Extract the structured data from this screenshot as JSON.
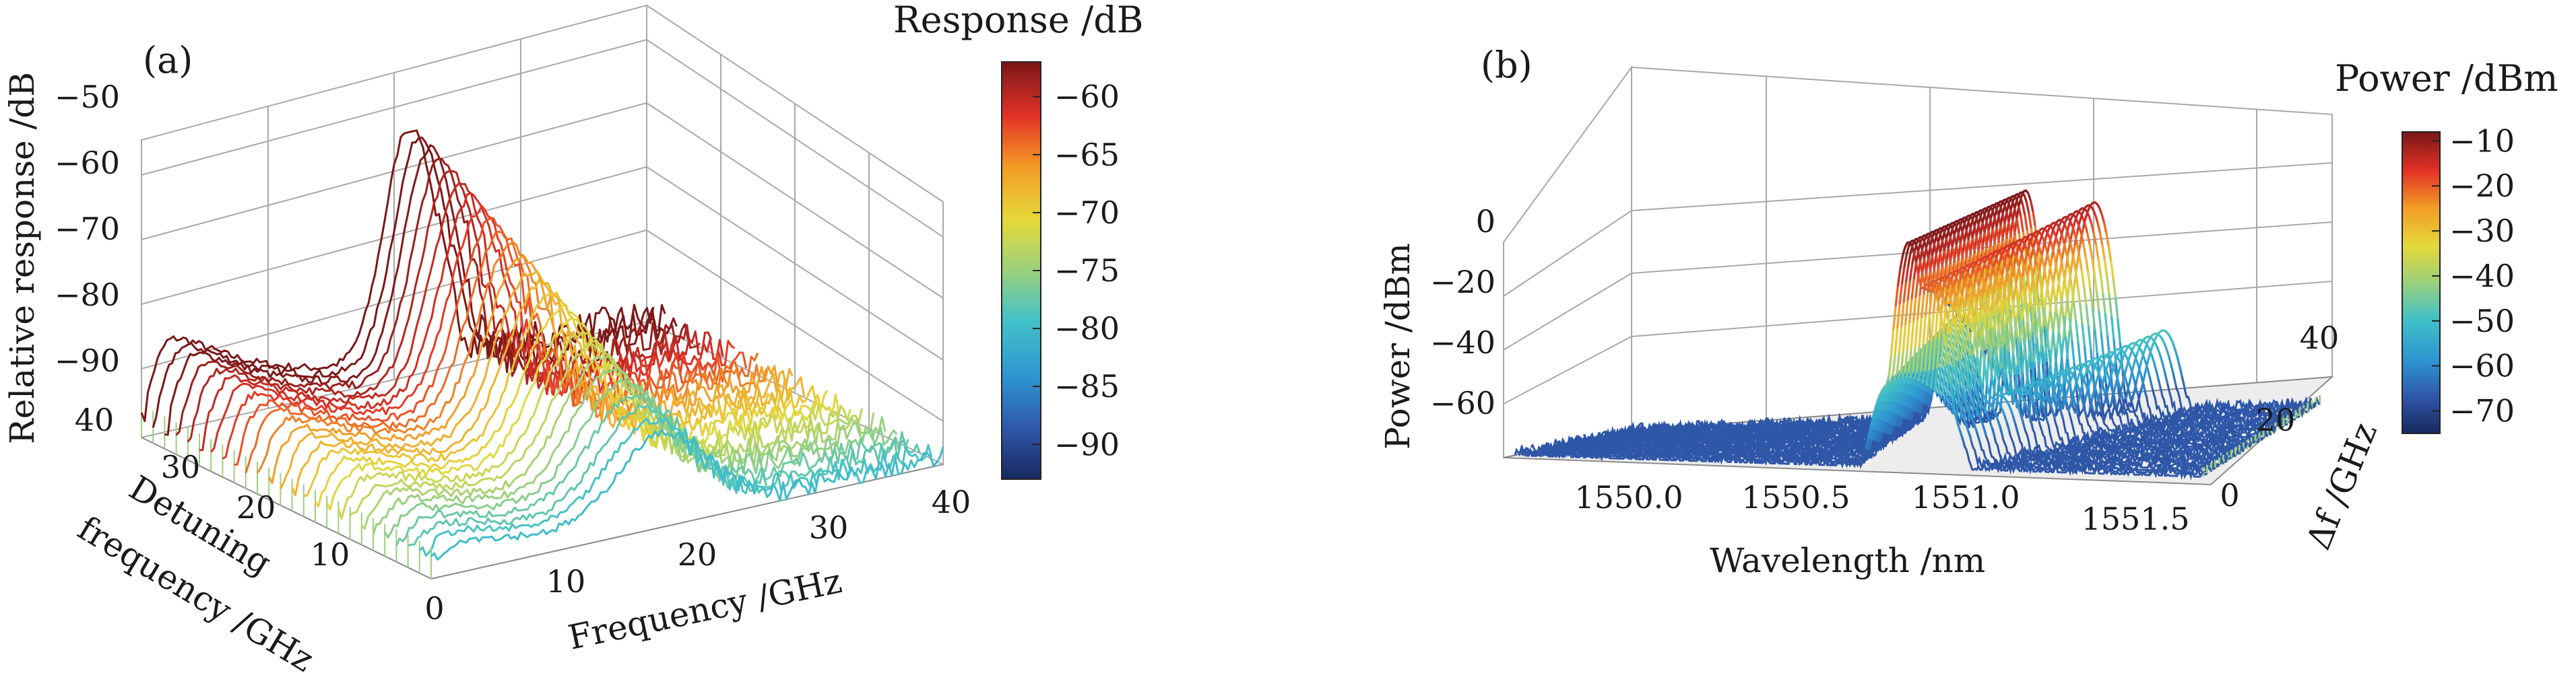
{
  "chart_data": [
    {
      "panel_label": "(a)",
      "type": "waterfall-3d-line",
      "x_label": "Frequency /GHz",
      "y_label_lines": [
        "Detuning",
        "frequency /GHz"
      ],
      "z_label": "Relative response /dB",
      "x_ticks": [
        "0",
        "10",
        "20",
        "30",
        "40"
      ],
      "y_ticks": [
        "10",
        "20",
        "30",
        "40"
      ],
      "z_ticks": [
        "−50",
        "−60",
        "−70",
        "−80",
        "−90"
      ],
      "xlim": [
        0,
        40
      ],
      "ylim": [
        0,
        40
      ],
      "zlim": [
        -95,
        -50
      ],
      "colorbar": {
        "title": "Response /dB",
        "ticks": [
          "−60",
          "−65",
          "−70",
          "−75",
          "−80",
          "−85",
          "−90"
        ],
        "range": [
          -93,
          -57
        ]
      },
      "trace_count": 26,
      "detuning_range": [
        0,
        40
      ],
      "baseline_response": -90,
      "low_frequency_shoulder": -74,
      "peak_response": -57,
      "peak_frequency_at_max_detuning": 21,
      "noise_floor_after_peak": -88
    },
    {
      "panel_label": "(b)",
      "type": "waterfall-3d-line",
      "x_label": "Wavelength /nm",
      "y_label": "Δf /GHz",
      "z_label": "Power /dBm",
      "x_ticks": [
        "1550.0",
        "1550.5",
        "1551.0",
        "1551.5"
      ],
      "y_ticks": [
        "0",
        "20",
        "40"
      ],
      "z_ticks": [
        "0",
        "−20",
        "−40",
        "−60"
      ],
      "xlim": [
        1549.75,
        1551.6
      ],
      "ylim": [
        0,
        45
      ],
      "zlim": [
        -70,
        10
      ],
      "colorbar": {
        "title": "Power /dBm",
        "ticks": [
          "−10",
          "−20",
          "−30",
          "−40",
          "−50",
          "−60",
          "−70"
        ],
        "range": [
          -75,
          -8
        ]
      },
      "trace_count": 30,
      "noise_floor": -70,
      "carrier_wavelength": 1550.78,
      "carrier_power": -8,
      "upper_sideband_power": -12,
      "lower_sideband_power": -42,
      "outer_sideband_power": -48
    }
  ]
}
